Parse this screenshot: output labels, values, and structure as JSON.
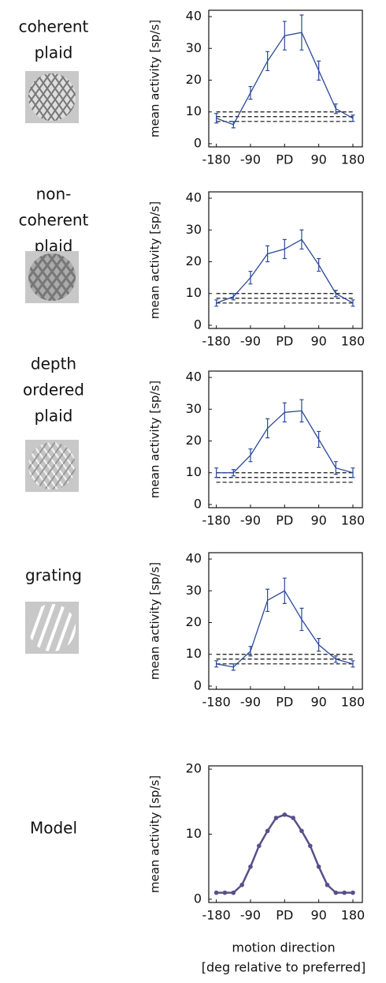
{
  "chart_data": [
    {
      "type": "line",
      "stimulus": [
        "coherent",
        "plaid"
      ],
      "ylabel": "mean activity [sp/s]",
      "x": [
        -180,
        -135,
        -90,
        -45,
        0,
        45,
        90,
        135,
        180
      ],
      "values": [
        8,
        6,
        16,
        26,
        34,
        35,
        23,
        11,
        8
      ],
      "errors": [
        1.5,
        1,
        2,
        3,
        4.5,
        5.5,
        3,
        1.5,
        1
      ],
      "reference_lines": [
        7,
        8.5,
        10
      ],
      "color": "#2b4a9a",
      "xlim": [
        -200,
        205
      ],
      "xticks": [
        -180,
        -90,
        {
          "value": 0,
          "label": "PD"
        },
        90,
        180
      ],
      "ylim": [
        -1,
        42
      ],
      "yticks": [
        0,
        10,
        20,
        30,
        40
      ]
    },
    {
      "type": "line",
      "stimulus": [
        "non-",
        "coherent",
        "plaid"
      ],
      "ylabel": "mean activity [sp/s]",
      "x": [
        -180,
        -135,
        -90,
        -45,
        0,
        45,
        90,
        135,
        180
      ],
      "values": [
        7,
        9,
        15,
        22.5,
        24,
        27,
        19,
        10,
        7
      ],
      "errors": [
        1,
        1,
        2,
        2.5,
        3,
        3,
        2,
        1,
        1
      ],
      "reference_lines": [
        7,
        8.5,
        10
      ],
      "color": "#2b4a9a",
      "xlim": [
        -200,
        205
      ],
      "xticks": [
        -180,
        -90,
        {
          "value": 0,
          "label": "PD"
        },
        90,
        180
      ],
      "ylim": [
        -1,
        42
      ],
      "yticks": [
        0,
        10,
        20,
        30,
        40
      ]
    },
    {
      "type": "line",
      "stimulus": [
        "depth",
        "ordered",
        "plaid"
      ],
      "ylabel": "mean activity [sp/s]",
      "x": [
        -180,
        -135,
        -90,
        -45,
        0,
        45,
        90,
        135,
        180
      ],
      "values": [
        10,
        10,
        15.5,
        24,
        29,
        29.5,
        20.5,
        11.5,
        10
      ],
      "errors": [
        1.5,
        1,
        2,
        3,
        3,
        3.5,
        2.5,
        2,
        1.5
      ],
      "reference_lines": [
        7,
        8.5,
        10
      ],
      "color": "#2b4a9a",
      "xlim": [
        -200,
        205
      ],
      "xticks": [
        -180,
        -90,
        {
          "value": 0,
          "label": "PD"
        },
        90,
        180
      ],
      "ylim": [
        -1,
        42
      ],
      "yticks": [
        0,
        10,
        20,
        30,
        40
      ]
    },
    {
      "type": "line",
      "stimulus": [
        "grating"
      ],
      "ylabel": "mean activity [sp/s]",
      "x": [
        -180,
        -135,
        -90,
        -45,
        0,
        45,
        90,
        135,
        180
      ],
      "values": [
        7,
        6,
        11,
        27,
        30,
        21,
        13,
        8.5,
        7
      ],
      "errors": [
        1,
        1,
        1.5,
        3.5,
        4,
        3.5,
        2,
        1,
        1
      ],
      "reference_lines": [
        7,
        8.5,
        10
      ],
      "color": "#2b4a9a",
      "xlim": [
        -200,
        205
      ],
      "xticks": [
        -180,
        -90,
        {
          "value": 0,
          "label": "PD"
        },
        90,
        180
      ],
      "ylim": [
        -1,
        42
      ],
      "yticks": [
        0,
        10,
        20,
        30,
        40
      ]
    },
    {
      "type": "line",
      "stimulus": [
        "Model"
      ],
      "ylabel": "mean activity [sp/s]",
      "xlabel": [
        "motion direction",
        "[deg relative to preferred]"
      ],
      "x": [
        -180,
        -157.5,
        -135,
        -112.5,
        -90,
        -67.5,
        -45,
        -22.5,
        0,
        22.5,
        45,
        67.5,
        90,
        112.5,
        135,
        157.5,
        180
      ],
      "values": [
        1,
        1,
        1,
        2.2,
        5,
        8.2,
        10.5,
        12.5,
        13,
        12.5,
        10.5,
        8.2,
        5,
        2.2,
        1,
        1,
        1
      ],
      "markers": true,
      "color": "#5a4f8a",
      "xlim": [
        -200,
        205
      ],
      "xticks": [
        -180,
        -90,
        {
          "value": 0,
          "label": "PD"
        },
        90,
        180
      ],
      "ylim": [
        -0.5,
        20.5
      ],
      "yticks": [
        0,
        10,
        20
      ]
    }
  ]
}
